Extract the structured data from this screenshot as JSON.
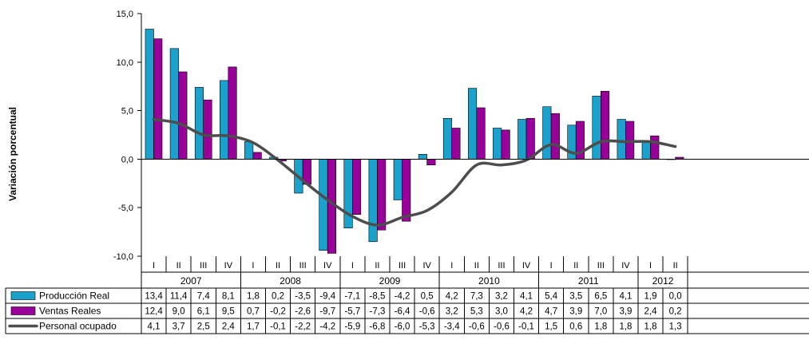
{
  "chart_data": {
    "type": "bar",
    "ylabel": "Variación porcentual",
    "ylim": [
      -10,
      15
    ],
    "yticks": [
      "15,0",
      "10,0",
      "5,0",
      "0,0",
      "-5,0",
      "-10,0"
    ],
    "quarters": [
      "I",
      "II",
      "III",
      "IV",
      "I",
      "II",
      "III",
      "IV",
      "I",
      "II",
      "III",
      "IV",
      "I",
      "II",
      "III",
      "IV",
      "I",
      "II",
      "III",
      "IV",
      "I",
      "II"
    ],
    "years": [
      {
        "label": "2007",
        "span": 4
      },
      {
        "label": "2008",
        "span": 4
      },
      {
        "label": "2009",
        "span": 4
      },
      {
        "label": "2010",
        "span": 4
      },
      {
        "label": "2011",
        "span": 4
      },
      {
        "label": "2012",
        "span": 2
      }
    ],
    "series": [
      {
        "name": "Producción Real",
        "kind": "bar",
        "color": "#1AA1CC",
        "values": [
          13.4,
          11.4,
          7.4,
          8.1,
          1.8,
          0.2,
          -3.5,
          -9.4,
          -7.1,
          -8.5,
          -4.2,
          0.5,
          4.2,
          7.3,
          3.2,
          4.1,
          5.4,
          3.5,
          6.5,
          4.1,
          1.9,
          0.0
        ],
        "labels": [
          "13,4",
          "11,4",
          "7,4",
          "8,1",
          "1,8",
          "0,2",
          "-3,5",
          "-9,4",
          "-7,1",
          "-8,5",
          "-4,2",
          "0,5",
          "4,2",
          "7,3",
          "3,2",
          "4,1",
          "5,4",
          "3,5",
          "6,5",
          "4,1",
          "1,9",
          "0,0"
        ]
      },
      {
        "name": "Ventas Reales",
        "kind": "bar",
        "color": "#990099",
        "values": [
          12.4,
          9.0,
          6.1,
          9.5,
          0.7,
          -0.2,
          -2.6,
          -9.7,
          -5.7,
          -7.3,
          -6.4,
          -0.6,
          3.2,
          5.3,
          3.0,
          4.2,
          4.7,
          3.9,
          7.0,
          3.9,
          2.4,
          0.2
        ],
        "labels": [
          "12,4",
          "9,0",
          "6,1",
          "9,5",
          "0,7",
          "-0,2",
          "-2,6",
          "-9,7",
          "-5,7",
          "-7,3",
          "-6,4",
          "-0,6",
          "3,2",
          "5,3",
          "3,0",
          "4,2",
          "4,7",
          "3,9",
          "7,0",
          "3,9",
          "2,4",
          "0,2"
        ]
      },
      {
        "name": "Personal ocupado",
        "kind": "line",
        "color": "#4D4D4D",
        "values": [
          4.1,
          3.7,
          2.5,
          2.4,
          1.7,
          -0.1,
          -2.2,
          -4.2,
          -5.9,
          -6.8,
          -6.0,
          -5.3,
          -3.4,
          -0.6,
          -0.6,
          -0.1,
          1.5,
          0.6,
          1.8,
          1.8,
          1.8,
          1.3
        ],
        "labels": [
          "4,1",
          "3,7",
          "2,5",
          "2,4",
          "1,7",
          "-0,1",
          "-2,2",
          "-4,2",
          "-5,9",
          "-6,8",
          "-6,0",
          "-5,3",
          "-3,4",
          "-0,6",
          "-0,6",
          "-0,1",
          "1,5",
          "0,6",
          "1,8",
          "1,8",
          "1,8",
          "1,3"
        ]
      }
    ]
  }
}
